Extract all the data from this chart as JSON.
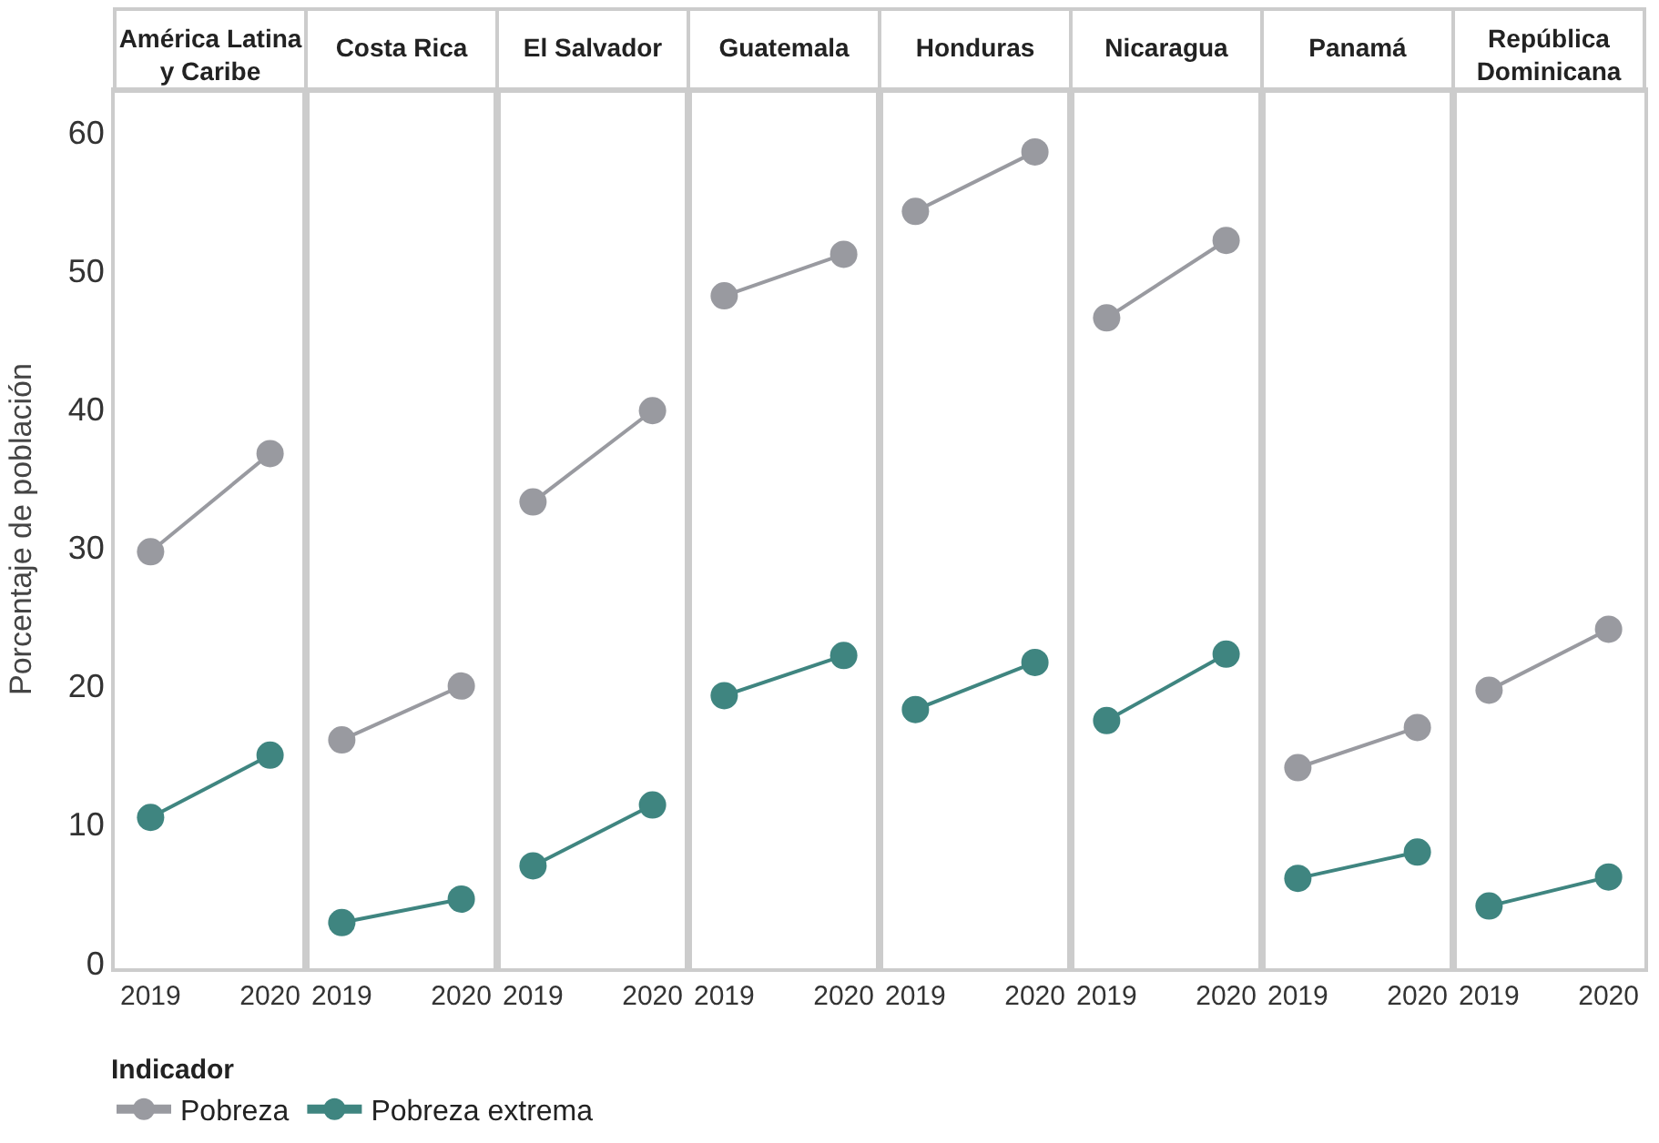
{
  "chart_data": [
    {
      "type": "line",
      "title": "América Latina y Caribe",
      "ylabel": "Porcentaje de población",
      "legend_title": "Indicador",
      "legend": "bottom",
      "marker": "circle",
      "grid": false,
      "categories": [
        "2019",
        "2020"
      ],
      "ylim": [
        -0.4,
        63
      ],
      "yticks": [
        0,
        10,
        20,
        30,
        40,
        50,
        60
      ],
      "series": [
        {
          "name": "Pobreza",
          "color": "#999aa0",
          "values": [
            29.7,
            36.8
          ]
        },
        {
          "name": "Pobreza extrema",
          "color": "#3f8580",
          "values": [
            10.5,
            15.0
          ]
        }
      ]
    },
    {
      "type": "line",
      "title": "Costa Rica",
      "marker": "circle",
      "grid": false,
      "tick_labels": "x",
      "categories": [
        "2019",
        "2020"
      ],
      "ylim": [
        -0.4,
        63
      ],
      "series": [
        {
          "color": "#999aa0",
          "values": [
            16.1,
            20.0
          ]
        },
        {
          "color": "#3f8580",
          "values": [
            2.9,
            4.6
          ]
        }
      ]
    },
    {
      "type": "line",
      "title": "El Salvador",
      "marker": "circle",
      "grid": false,
      "tick_labels": "x",
      "categories": [
        "2019",
        "2020"
      ],
      "ylim": [
        -0.4,
        63
      ],
      "series": [
        {
          "color": "#999aa0",
          "values": [
            33.3,
            39.9
          ]
        },
        {
          "color": "#3f8580",
          "values": [
            7.0,
            11.4
          ]
        }
      ]
    },
    {
      "type": "line",
      "title": "Guatemala",
      "marker": "circle",
      "grid": false,
      "tick_labels": "x",
      "categories": [
        "2019",
        "2020"
      ],
      "ylim": [
        -0.4,
        63
      ],
      "series": [
        {
          "color": "#999aa0",
          "values": [
            48.2,
            51.2
          ]
        },
        {
          "color": "#3f8580",
          "values": [
            19.3,
            22.2
          ]
        }
      ]
    },
    {
      "type": "line",
      "title": "Honduras",
      "marker": "circle",
      "grid": false,
      "tick_labels": "x",
      "categories": [
        "2019",
        "2020"
      ],
      "ylim": [
        -0.4,
        63
      ],
      "series": [
        {
          "color": "#999aa0",
          "values": [
            54.3,
            58.6
          ]
        },
        {
          "color": "#3f8580",
          "values": [
            18.3,
            21.7
          ]
        }
      ]
    },
    {
      "type": "line",
      "title": "Nicaragua",
      "marker": "circle",
      "grid": false,
      "tick_labels": "x",
      "categories": [
        "2019",
        "2020"
      ],
      "ylim": [
        -0.4,
        63
      ],
      "series": [
        {
          "color": "#999aa0",
          "values": [
            46.6,
            52.2
          ]
        },
        {
          "color": "#3f8580",
          "values": [
            17.5,
            22.3
          ]
        }
      ]
    },
    {
      "type": "line",
      "title": "Panamá",
      "marker": "circle",
      "grid": false,
      "tick_labels": "x",
      "categories": [
        "2019",
        "2020"
      ],
      "ylim": [
        -0.4,
        63
      ],
      "series": [
        {
          "color": "#999aa0",
          "values": [
            14.1,
            17.0
          ]
        },
        {
          "color": "#3f8580",
          "values": [
            6.1,
            8.0
          ]
        }
      ]
    },
    {
      "type": "line",
      "title": "República Dominicana",
      "marker": "circle",
      "grid": false,
      "tick_labels": "x",
      "categories": [
        "2019",
        "2020"
      ],
      "ylim": [
        -0.4,
        63
      ],
      "series": [
        {
          "color": "#999aa0",
          "values": [
            19.7,
            24.1
          ]
        },
        {
          "color": "#3f8580",
          "values": [
            4.1,
            6.2
          ]
        }
      ]
    }
  ]
}
